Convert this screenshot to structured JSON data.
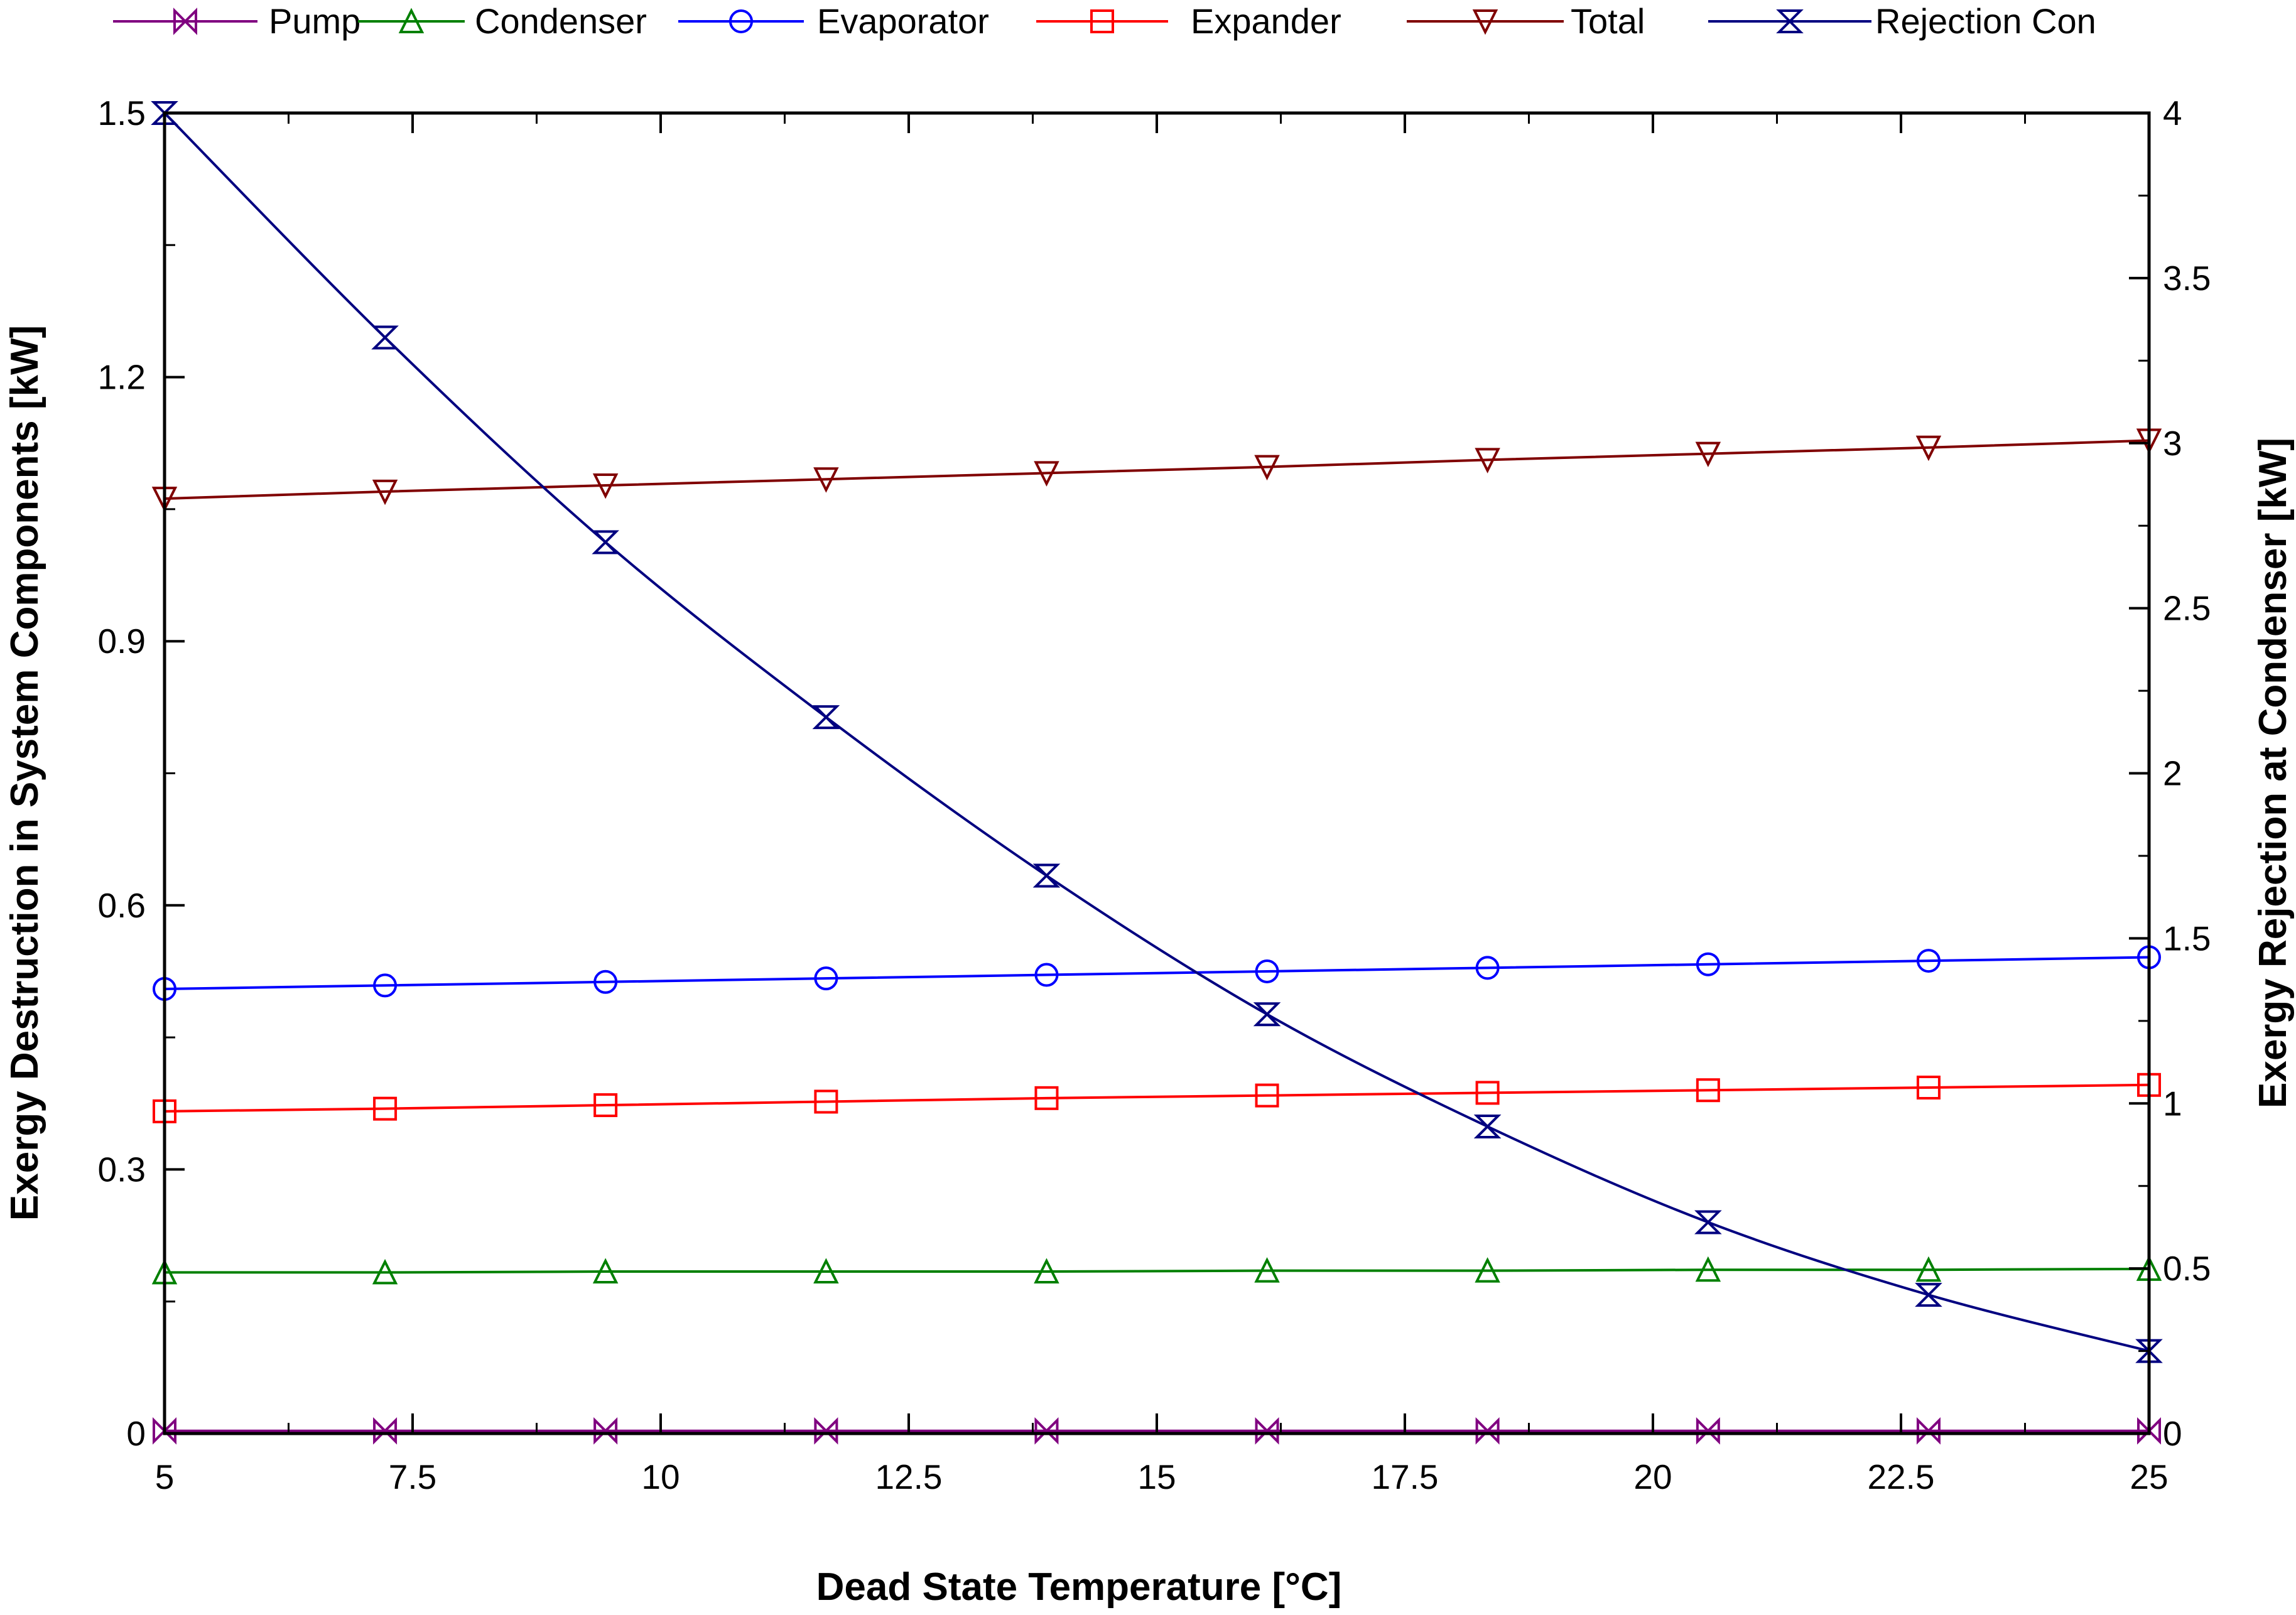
{
  "chart_data": {
    "type": "line",
    "title": "",
    "xlabel": "Dead State Temperature [°C]",
    "ylabel": "Exergy Destruction in System Components [kW]",
    "y2label": "Exergy Rejection at Condenser [kW]",
    "xlim": [
      5,
      25
    ],
    "ylim": [
      0,
      1.5
    ],
    "y2lim": [
      0,
      4
    ],
    "x_ticks": [
      "5",
      "7.5",
      "10",
      "12.5",
      "15",
      "17.5",
      "20",
      "22.5",
      "25"
    ],
    "y_ticks": [
      "0",
      "0.3",
      "0.6",
      "0.9",
      "1.2",
      "1.5"
    ],
    "y2_ticks": [
      "0",
      "0.5",
      "1",
      "1.5",
      "2",
      "2.5",
      "3",
      "3.5",
      "4"
    ],
    "x": [
      5,
      7.222,
      9.444,
      11.667,
      13.889,
      16.111,
      18.333,
      20.556,
      22.778,
      25
    ],
    "series": [
      {
        "name": "Pump",
        "axis": "left",
        "color": "#800080",
        "marker": "bowtie",
        "values": [
          0.003,
          0.003,
          0.003,
          0.003,
          0.003,
          0.003,
          0.003,
          0.003,
          0.003,
          0.003
        ]
      },
      {
        "name": "Condenser",
        "axis": "left",
        "color": "#008000",
        "marker": "triangle-up",
        "values": [
          0.183,
          0.183,
          0.184,
          0.184,
          0.184,
          0.185,
          0.185,
          0.186,
          0.186,
          0.187
        ]
      },
      {
        "name": "Evaporator",
        "axis": "left",
        "color": "#0000ff",
        "marker": "circle",
        "values": [
          0.505,
          0.509,
          0.513,
          0.517,
          0.521,
          0.525,
          0.529,
          0.533,
          0.537,
          0.541
        ]
      },
      {
        "name": "Expander",
        "axis": "left",
        "color": "#ff0000",
        "marker": "square",
        "values": [
          0.366,
          0.369,
          0.373,
          0.377,
          0.381,
          0.384,
          0.387,
          0.39,
          0.393,
          0.396
        ]
      },
      {
        "name": "Total",
        "axis": "left",
        "color": "#800000",
        "marker": "triangle-down",
        "values": [
          1.062,
          1.07,
          1.077,
          1.084,
          1.091,
          1.098,
          1.106,
          1.113,
          1.12,
          1.128
        ]
      },
      {
        "name": "Rejection Con",
        "axis": "right",
        "color": "#000080",
        "marker": "hourglass",
        "values": [
          4.0,
          3.32,
          2.7,
          2.17,
          1.69,
          1.27,
          0.93,
          0.64,
          0.42,
          0.25
        ]
      }
    ],
    "legend_position": "top"
  }
}
